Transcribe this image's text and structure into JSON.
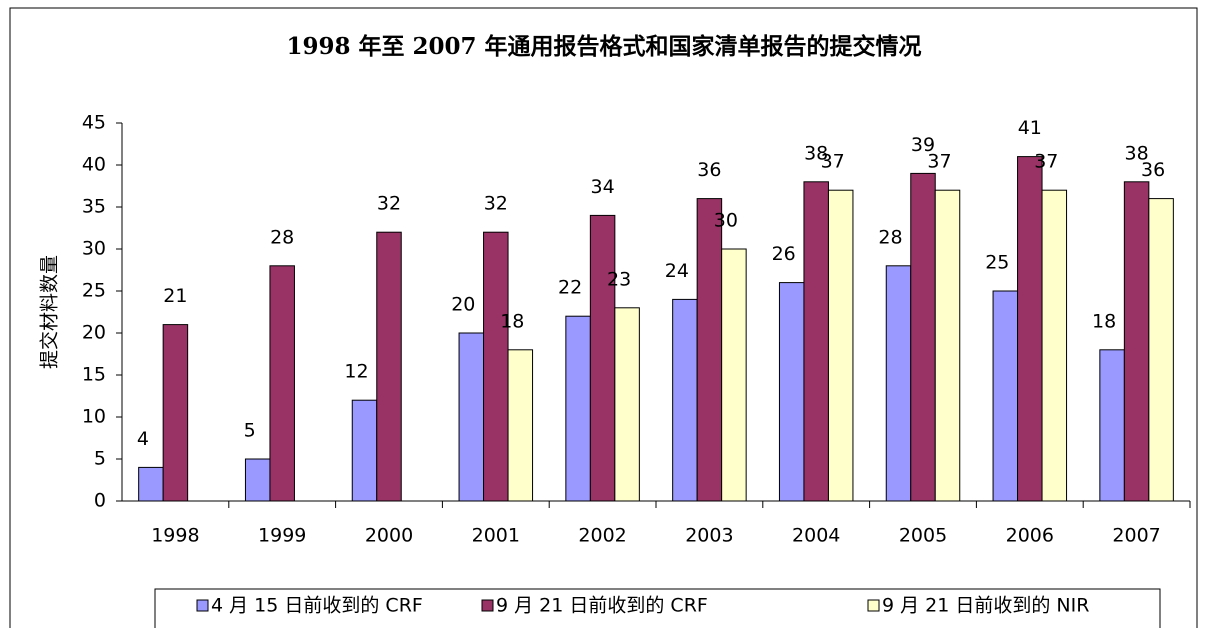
{
  "chart_data": {
    "type": "bar",
    "title": "1998 年至 2007 年通用报告格式和国家清单报告的提交情况",
    "y_label": "提交材料数量",
    "categories": [
      "1998",
      "1999",
      "2000",
      "2001",
      "2002",
      "2003",
      "2004",
      "2005",
      "2006",
      "2007"
    ],
    "series": [
      {
        "name": "4 月 15 日前收到的 CRF",
        "color": "#9999ff",
        "values": [
          4,
          5,
          12,
          20,
          22,
          24,
          26,
          28,
          25,
          18
        ]
      },
      {
        "name": "9 月 21 日前收到的 CRF",
        "color": "#993366",
        "values": [
          21,
          28,
          32,
          32,
          34,
          36,
          38,
          39,
          41,
          38
        ]
      },
      {
        "name": "9 月 21 日前收到的 NIR",
        "color": "#ffffcc",
        "values": [
          null,
          null,
          null,
          18,
          23,
          30,
          37,
          37,
          37,
          36
        ]
      }
    ],
    "ylim": [
      0,
      45
    ],
    "yticks": [
      0,
      5,
      10,
      15,
      20,
      25,
      30,
      35,
      40,
      45
    ],
    "legend": "bottom"
  }
}
